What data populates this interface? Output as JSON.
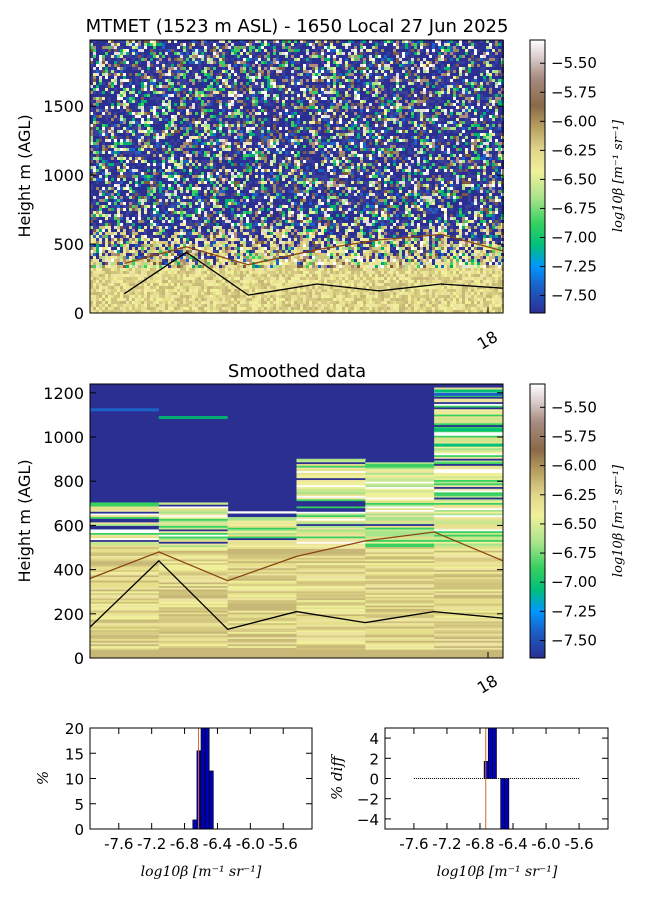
{
  "chart_data": [
    {
      "type": "heatmap",
      "title": "MTMET (1523 m ASL) - 1650 Local 27 Jun 2025",
      "ylabel": "Height m (AGL)",
      "ylim": [
        0,
        1980
      ],
      "yticks": [
        0,
        500,
        1000,
        1500
      ],
      "xticks": [
        "18"
      ],
      "xlim": [
        0,
        6
      ],
      "colorbar": {
        "label": "log10β [m⁻¹ sr⁻¹]",
        "range": [
          -7.65,
          -5.3
        ],
        "ticks": [
          "−5.50",
          "−5.75",
          "−6.00",
          "−6.25",
          "−6.50",
          "−6.75",
          "−7.00",
          "−7.25",
          "−7.50"
        ],
        "tick_values": [
          -5.5,
          -5.75,
          -6.0,
          -6.25,
          -6.5,
          -6.75,
          -7.0,
          -7.25,
          -7.5
        ]
      },
      "series": [
        {
          "color": "#8b4513",
          "x": [
            0.5,
            1.4,
            2.3,
            3.3,
            4.2,
            5.1,
            6.0
          ],
          "y": [
            360,
            480,
            350,
            460,
            530,
            570,
            450
          ]
        },
        {
          "color": "#000000",
          "x": [
            0.5,
            1.4,
            2.3,
            3.3,
            4.2,
            5.1,
            6.0
          ],
          "y": [
            140,
            440,
            130,
            210,
            160,
            210,
            180
          ]
        }
      ]
    },
    {
      "type": "heatmap",
      "title": "Smoothed data",
      "ylabel": "Height m (AGL)",
      "ylim": [
        0,
        1240
      ],
      "yticks": [
        0,
        200,
        400,
        600,
        800,
        1000,
        1200
      ],
      "xticks": [
        "18"
      ],
      "xlim": [
        0,
        6
      ],
      "colorbar": {
        "label": "log10β [m⁻¹ sr⁻¹]",
        "range": [
          -7.65,
          -5.3
        ],
        "ticks": [
          "−5.50",
          "−5.75",
          "−6.00",
          "−6.25",
          "−6.50",
          "−6.75",
          "−7.00",
          "−7.25",
          "−7.50"
        ],
        "tick_values": [
          -5.5,
          -5.75,
          -6.0,
          -6.25,
          -6.5,
          -6.75,
          -7.0,
          -7.25,
          -7.5
        ]
      },
      "columns_top": [
        700,
        700,
        660,
        910,
        890,
        1220
      ],
      "series": [
        {
          "color": "#8b4513",
          "x": [
            0,
            1,
            2,
            3,
            4,
            5,
            6
          ],
          "y": [
            360,
            480,
            350,
            460,
            530,
            570,
            440
          ]
        },
        {
          "color": "#000000",
          "x": [
            0,
            1,
            2,
            3,
            4,
            5,
            6
          ],
          "y": [
            140,
            440,
            130,
            210,
            160,
            210,
            180
          ]
        }
      ]
    },
    {
      "type": "bar",
      "ylabel": "%",
      "xlabel": "log10β [m⁻¹ sr⁻¹]",
      "xlim": [
        -7.95,
        -5.25
      ],
      "ylim": [
        0,
        20
      ],
      "xticks": [
        "-7.6",
        "-7.2",
        "-6.8",
        "-6.4",
        "-6.0",
        "-5.6"
      ],
      "xtick_values": [
        -7.6,
        -7.2,
        -6.8,
        -6.4,
        -6.0,
        -5.6
      ],
      "yticks": [
        0,
        5,
        10,
        15,
        20
      ],
      "bin_width": 0.05,
      "bins_x": [
        -6.675,
        -6.625,
        -6.575,
        -6.525,
        -6.475
      ],
      "values": [
        1.8,
        15.5,
        21,
        21,
        11.5
      ],
      "marker_x": -6.63
    },
    {
      "type": "bar",
      "ylabel": "% diff",
      "xlabel": "log10β [m⁻¹ sr⁻¹]",
      "xlim": [
        -7.95,
        -5.25
      ],
      "ylim": [
        -5,
        5
      ],
      "xticks": [
        "-7.6",
        "-7.2",
        "-6.8",
        "-6.4",
        "-6.0",
        "-5.6"
      ],
      "xtick_values": [
        -7.6,
        -7.2,
        -6.8,
        -6.4,
        -6.0,
        -5.6
      ],
      "yticks": [
        4,
        2,
        0,
        -2,
        -4
      ],
      "ytick_labels": [
        "4",
        "2",
        "0",
        "−2",
        "−4"
      ],
      "bin_width": 0.05,
      "bins_x": [
        -6.725,
        -6.675,
        -6.625,
        -6.575,
        -6.525,
        -6.475
      ],
      "values": [
        1.7,
        5.5,
        5.5,
        0,
        -5.5,
        -5.5
      ],
      "marker_x": -6.73,
      "baseline_range": [
        -7.6,
        -5.6
      ]
    }
  ]
}
